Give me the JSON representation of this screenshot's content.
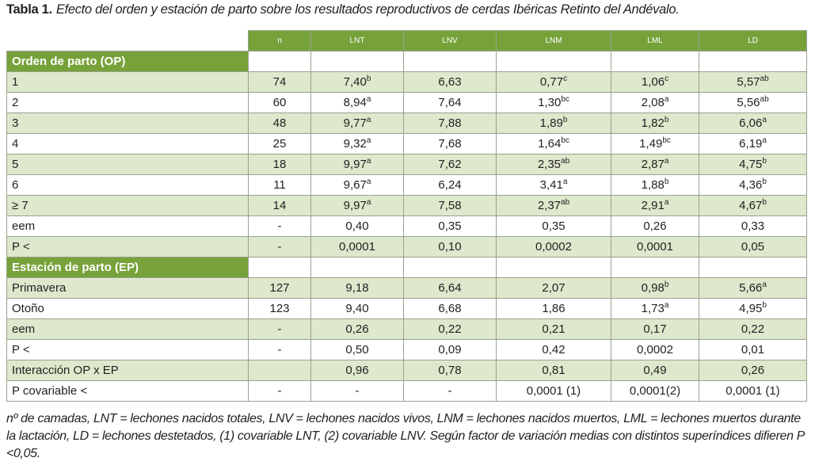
{
  "caption": {
    "label": "Tabla 1.",
    "text": "Efecto del orden y estación de parto sobre los resultados reproductivos de cerdas Ibéricas Retinto del Andévalo."
  },
  "table": {
    "columns": [
      "n",
      "LNT",
      "LNV",
      "LNM",
      "LML",
      "LD"
    ],
    "rows": [
      {
        "section": "Orden de parto (OP)"
      },
      {
        "label": "1",
        "cells": [
          "74",
          {
            "text": "7,40",
            "sup": "b"
          },
          "6,63",
          {
            "text": "0,77",
            "sup": "c"
          },
          {
            "text": "1,06",
            "sup": "c"
          },
          {
            "text": "5,57",
            "sup": "ab"
          }
        ]
      },
      {
        "label": "2",
        "cells": [
          "60",
          {
            "text": "8,94",
            "sup": "a"
          },
          "7,64",
          {
            "text": "1,30",
            "sup": "bc"
          },
          {
            "text": "2,08",
            "sup": "a"
          },
          {
            "text": "5,56",
            "sup": "ab"
          }
        ]
      },
      {
        "label": "3",
        "cells": [
          "48",
          {
            "text": "9,77",
            "sup": "a"
          },
          "7,88",
          {
            "text": "1,89",
            "sup": "b"
          },
          {
            "text": "1,82",
            "sup": "b"
          },
          {
            "text": "6,06",
            "sup": "a"
          }
        ]
      },
      {
        "label": "4",
        "cells": [
          "25",
          {
            "text": "9,32",
            "sup": "a"
          },
          "7,68",
          {
            "text": "1,64",
            "sup": "bc"
          },
          {
            "text": "1,49",
            "sup": "bc"
          },
          {
            "text": "6,19",
            "sup": "a"
          }
        ]
      },
      {
        "label": "5",
        "cells": [
          "18",
          {
            "text": "9,97",
            "sup": "a"
          },
          "7,62",
          {
            "text": "2,35",
            "sup": "ab"
          },
          {
            "text": "2,87",
            "sup": "a"
          },
          {
            "text": "4,75",
            "sup": "b"
          }
        ]
      },
      {
        "label": "6",
        "cells": [
          "11",
          {
            "text": "9,67",
            "sup": "a"
          },
          "6,24",
          {
            "text": "3,41",
            "sup": "a"
          },
          {
            "text": "1,88",
            "sup": "b"
          },
          {
            "text": "4,36",
            "sup": "b"
          }
        ]
      },
      {
        "label": "≥ 7",
        "cells": [
          "14",
          {
            "text": "9,97",
            "sup": "a"
          },
          "7,58",
          {
            "text": "2,37",
            "sup": "ab"
          },
          {
            "text": "2,91",
            "sup": "a"
          },
          {
            "text": "4,67",
            "sup": "b"
          }
        ]
      },
      {
        "label": "eem",
        "cells": [
          "-",
          "0,40",
          "0,35",
          "0,35",
          "0,26",
          "0,33"
        ]
      },
      {
        "label": "P <",
        "cells": [
          "-",
          "0,0001",
          "0,10",
          "0,0002",
          "0,0001",
          "0,05"
        ]
      },
      {
        "section": "Estación de parto (EP)"
      },
      {
        "label": "Primavera",
        "cells": [
          "127",
          "9,18",
          "6,64",
          "2,07",
          {
            "text": "0,98",
            "sup": "b"
          },
          {
            "text": "5,66",
            "sup": "a"
          }
        ]
      },
      {
        "label": "Otoño",
        "cells": [
          "123",
          "9,40",
          "6,68",
          "1,86",
          {
            "text": "1,73",
            "sup": "a"
          },
          {
            "text": "4,95",
            "sup": "b"
          }
        ]
      },
      {
        "label": "eem",
        "cells": [
          "-",
          "0,26",
          "0,22",
          "0,21",
          "0,17",
          "0,22"
        ]
      },
      {
        "label": "P <",
        "cells": [
          "-",
          "0,50",
          "0,09",
          "0,42",
          "0,0002",
          "0,01"
        ]
      },
      {
        "label": "Interacción OP x EP",
        "cells": [
          null,
          "0,96",
          "0,78",
          "0,81",
          "0,49",
          "0,26"
        ]
      },
      {
        "label": "P covariable <",
        "cells": [
          "-",
          "-",
          "-",
          "0,0001 (1)",
          "0,0001(2)",
          "0,0001 (1)"
        ]
      }
    ]
  },
  "footnote": "nº de camadas, LNT = lechones nacidos totales, LNV = lechones nacidos vivos, LNM = lechones nacidos muertos, LML = lechones muertos durante la lactación, LD = lechones destetados, (1) covariable  LNT, (2) covariable LNV. Según factor de variación medias con distintos superíndices difieren P <0,05."
}
